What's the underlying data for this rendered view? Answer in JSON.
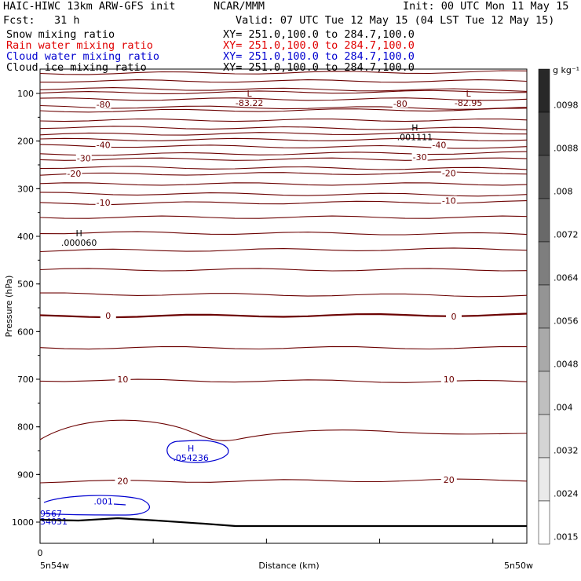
{
  "header": {
    "model": "HAIC-HIWC 13km ARW-GFS init",
    "center": "NCAR/MMM",
    "init": "Init: 00 UTC Mon 11 May 15",
    "fcst": "Fcst:   31 h",
    "valid": "Valid: 07 UTC Tue 12 May 15 (04 LST Tue 12 May 15)",
    "fields": [
      {
        "name": "Snow mixing ratio",
        "xy": "XY= 251.0,100.0 to 284.7,100.0",
        "color": "#000000"
      },
      {
        "name": "Rain water mixing ratio",
        "xy": "XY= 251.0,100.0 to 284.7,100.0",
        "color": "#e00000"
      },
      {
        "name": "Cloud water mixing ratio",
        "xy": "XY= 251.0,100.0 to 284.7,100.0",
        "color": "#0000d0"
      },
      {
        "name": "Cloud ice mixing ratio",
        "xy": "XY= 251.0,100.0 to 284.7,100.0",
        "color": "#000000"
      }
    ]
  },
  "chart_data": {
    "type": "contour-cross-section",
    "ylabel": "Pressure (hPa)",
    "xlabel": "Distance (km)",
    "y_ticks": [
      "100",
      "200",
      "300",
      "400",
      "500",
      "600",
      "700",
      "800",
      "900",
      "1000"
    ],
    "x_origin_label": "0",
    "x_left_label": "5n54w",
    "x_right_label": "5n50w",
    "colorbar": {
      "unit": "g kg⁻¹",
      "labels": [
        ".0098",
        ".0088",
        ".008",
        ".0072",
        ".0064",
        ".0056",
        ".0048",
        ".004",
        ".0032",
        ".0024",
        ".0015"
      ]
    },
    "temperature_contour_labels": [
      {
        "text": "-80",
        "x": 0.13,
        "p": 125
      },
      {
        "text": "-80",
        "x": 0.74,
        "p": 123
      },
      {
        "text": "-40",
        "x": 0.13,
        "p": 210
      },
      {
        "text": "-40",
        "x": 0.82,
        "p": 210
      },
      {
        "text": "-30",
        "x": 0.09,
        "p": 238
      },
      {
        "text": "-30",
        "x": 0.78,
        "p": 235
      },
      {
        "text": "-20",
        "x": 0.07,
        "p": 270
      },
      {
        "text": "-20",
        "x": 0.84,
        "p": 269
      },
      {
        "text": "-10",
        "x": 0.13,
        "p": 331
      },
      {
        "text": "-10",
        "x": 0.84,
        "p": 327
      },
      {
        "text": "0",
        "x": 0.14,
        "p": 568
      },
      {
        "text": "0",
        "x": 0.85,
        "p": 570
      },
      {
        "text": "10",
        "x": 0.17,
        "p": 702
      },
      {
        "text": "10",
        "x": 0.84,
        "p": 702
      },
      {
        "text": "20",
        "x": 0.17,
        "p": 915
      },
      {
        "text": "20",
        "x": 0.84,
        "p": 913
      }
    ],
    "temperature_contours": [
      58,
      74,
      90,
      99,
      112,
      128,
      137,
      156,
      171,
      186,
      197,
      210,
      228,
      238,
      255,
      270,
      290,
      310,
      331,
      360,
      392,
      430,
      470,
      521,
      568,
      634,
      702,
      915
    ],
    "extrema": [
      {
        "type": "L",
        "value": "-83.22",
        "x": 0.43,
        "p": 107,
        "color": "#6b0000"
      },
      {
        "type": "L",
        "value": "-82.95",
        "x": 0.88,
        "p": 107,
        "color": "#6b0000"
      },
      {
        "type": "H",
        "value": ".001111",
        "x": 0.77,
        "p": 178,
        "color": "#000000"
      },
      {
        "type": "H",
        "value": ".000060",
        "x": 0.08,
        "p": 400,
        "color": "#000000"
      },
      {
        "type": "H",
        "value": ".054236",
        "x": 0.31,
        "p": 852,
        "color": "#0000d0"
      }
    ],
    "cloud_water_labels": [
      {
        "text": ".001",
        "x": 0.13,
        "p": 956
      },
      {
        "text": "9567",
        "x": 0.0,
        "p": 982
      },
      {
        "text": "34031",
        "x": 0.0,
        "p": 998
      }
    ]
  }
}
